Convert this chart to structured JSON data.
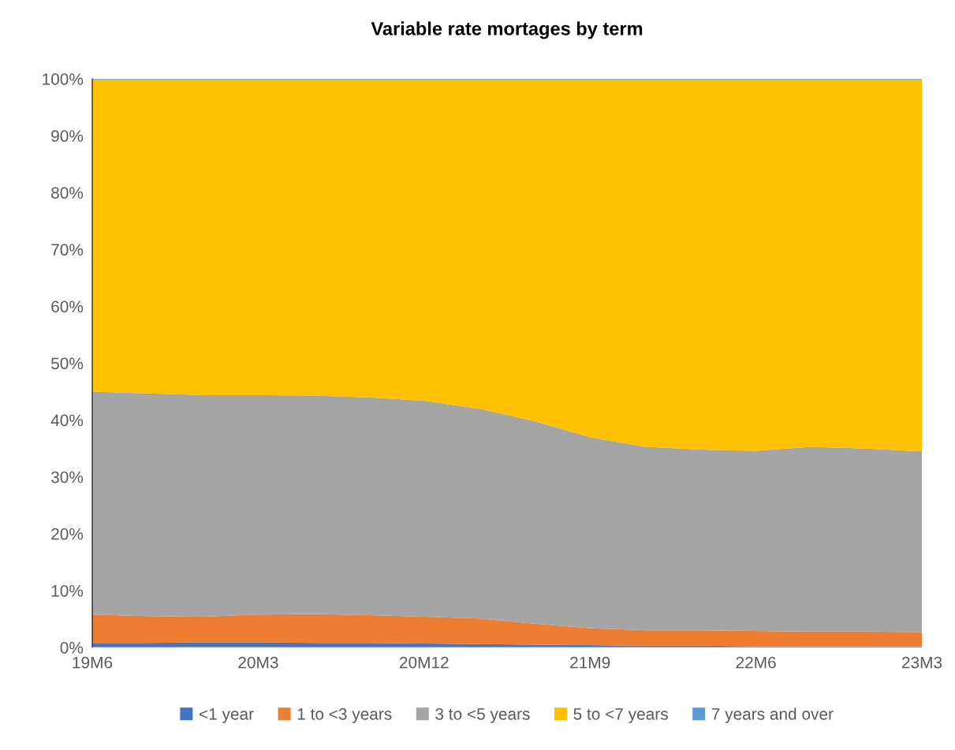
{
  "chart_data": {
    "type": "area",
    "stacked": true,
    "title": "Variable rate mortages by term",
    "categories": [
      "19M6",
      null,
      null,
      "20M3",
      null,
      null,
      "20M12",
      null,
      null,
      "21M9",
      null,
      null,
      "22M6",
      null,
      null,
      "23M3"
    ],
    "series": [
      {
        "name": "<1 year",
        "color": "#4472c4",
        "values": [
          0.8,
          0.8,
          0.9,
          0.9,
          0.8,
          0.8,
          0.7,
          0.6,
          0.5,
          0.4,
          0.3,
          0.3,
          0.2,
          0.2,
          0.2,
          0.2
        ]
      },
      {
        "name": "1 to <3 years",
        "color": "#ed7d31",
        "values": [
          5.0,
          4.7,
          4.5,
          4.9,
          5.1,
          4.9,
          4.7,
          4.5,
          3.7,
          3.0,
          2.7,
          2.7,
          2.7,
          2.6,
          2.6,
          2.5
        ]
      },
      {
        "name": "3 to <5 years",
        "color": "#a5a5a5",
        "values": [
          39.2,
          39.2,
          39.0,
          38.6,
          38.4,
          38.3,
          38.0,
          36.9,
          35.6,
          33.6,
          32.3,
          31.8,
          31.7,
          32.5,
          32.2,
          31.8
        ]
      },
      {
        "name": "5 to <7 years",
        "color": "#ffc000",
        "values": [
          54.9,
          55.2,
          55.5,
          55.5,
          55.6,
          55.9,
          56.5,
          57.9,
          60.1,
          62.9,
          64.6,
          65.1,
          65.3,
          64.6,
          64.9,
          65.4
        ]
      },
      {
        "name": "7 years and over",
        "color": "#5b9bd5",
        "values": [
          0.1,
          0.1,
          0.1,
          0.1,
          0.1,
          0.1,
          0.1,
          0.1,
          0.1,
          0.1,
          0.1,
          0.1,
          0.1,
          0.1,
          0.1,
          0.1
        ]
      }
    ],
    "ylim": [
      0,
      100
    ],
    "yticks": [
      {
        "value": 0,
        "label": "0%"
      },
      {
        "value": 10,
        "label": "10%"
      },
      {
        "value": 20,
        "label": "20%"
      },
      {
        "value": 30,
        "label": "30%"
      },
      {
        "value": 40,
        "label": "40%"
      },
      {
        "value": 50,
        "label": "50%"
      },
      {
        "value": 60,
        "label": "60%"
      },
      {
        "value": 70,
        "label": "70%"
      },
      {
        "value": 80,
        "label": "80%"
      },
      {
        "value": 90,
        "label": "90%"
      },
      {
        "value": 100,
        "label": "100%"
      }
    ],
    "grid": false,
    "legend": "bottom"
  }
}
